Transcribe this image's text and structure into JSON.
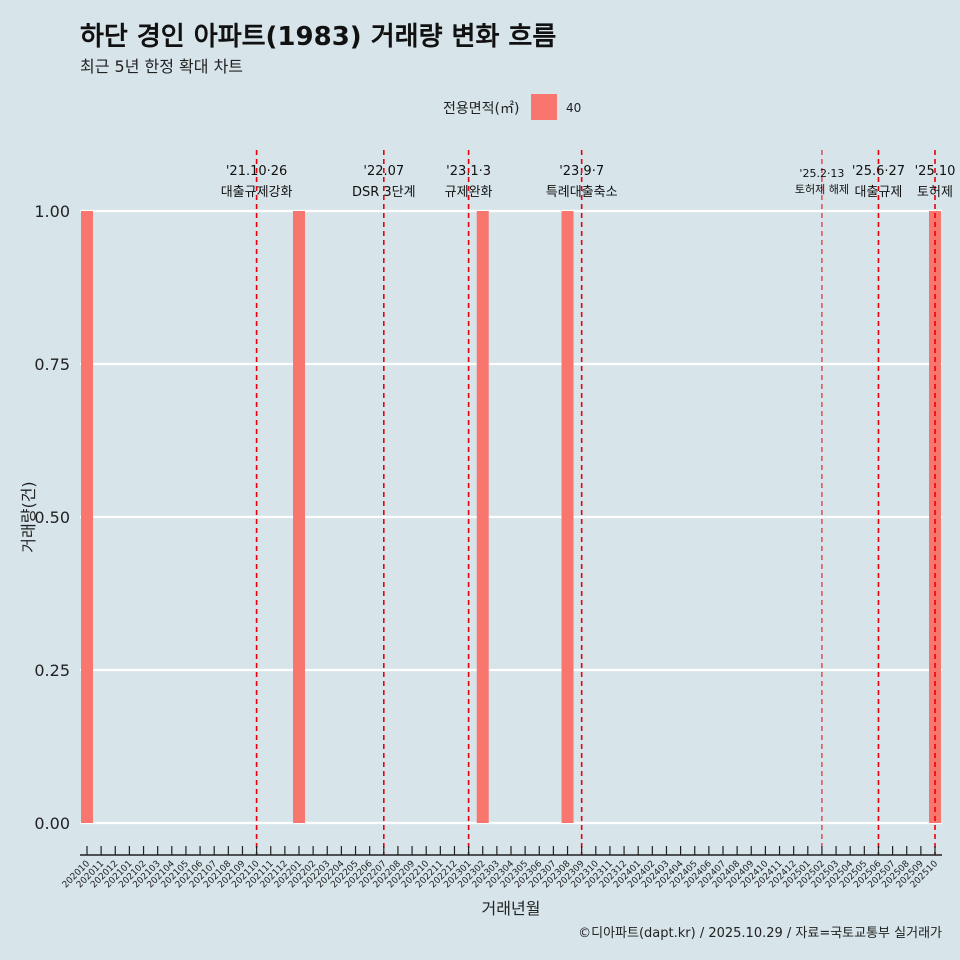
{
  "chart_data": {
    "type": "bar",
    "title": "하단 경인 아파트(1983) 거래량 변화 흐름",
    "subtitle": "최근 5년 한정 확대 차트",
    "xlabel": "거래년월",
    "ylabel": "거래량(건)",
    "caption": "©디아파트(dapt.kr) / 2025.10.29 / 자료=국토교통부 실거래가",
    "legend": {
      "title": "전용면적(㎡)",
      "entries": [
        {
          "label": "40",
          "color": "#f8766d"
        }
      ],
      "position": "top"
    },
    "ylim": [
      0,
      1
    ],
    "yticks": [
      0,
      0.25,
      0.5,
      0.75,
      1.0
    ],
    "ytick_labels": [
      "0.00",
      "0.25",
      "0.50",
      "0.75",
      "1.00"
    ],
    "categories": [
      "202010",
      "202011",
      "202012",
      "202101",
      "202102",
      "202103",
      "202104",
      "202105",
      "202106",
      "202107",
      "202108",
      "202109",
      "202110",
      "202111",
      "202112",
      "202201",
      "202202",
      "202203",
      "202204",
      "202205",
      "202206",
      "202207",
      "202208",
      "202209",
      "202210",
      "202211",
      "202212",
      "202301",
      "202302",
      "202303",
      "202304",
      "202305",
      "202306",
      "202307",
      "202308",
      "202309",
      "202310",
      "202311",
      "202312",
      "202401",
      "202402",
      "202403",
      "202404",
      "202405",
      "202406",
      "202407",
      "202408",
      "202409",
      "202410",
      "202411",
      "202412",
      "202501",
      "202502",
      "202503",
      "202504",
      "202505",
      "202506",
      "202507",
      "202508",
      "202509",
      "202510"
    ],
    "series": [
      {
        "name": "40",
        "color": "#f8766d",
        "points": [
          [
            "202010",
            1
          ],
          [
            "202201",
            1
          ],
          [
            "202302",
            1
          ],
          [
            "202308",
            1
          ],
          [
            "202510",
            1
          ]
        ]
      }
    ],
    "annotations": [
      {
        "at": "202110",
        "date": "'21.10·26",
        "label": "대출규제강화",
        "small": false
      },
      {
        "at": "202207",
        "date": "'22.07",
        "label": "DSR 3단계",
        "small": false
      },
      {
        "at": "202301",
        "date": "'23.1·3",
        "label": "규제완화",
        "small": false
      },
      {
        "at": "202309",
        "date": "'23.9·7",
        "label": "특례대출축소",
        "small": false
      },
      {
        "at": "202502",
        "date": "'25.2·13",
        "label": "토허제 해제",
        "small": true
      },
      {
        "at": "202506",
        "date": "'25.6·27",
        "label": "대출규제",
        "small": false
      },
      {
        "at": "202510",
        "date": "'25.10",
        "label": "토허제",
        "small": false
      }
    ],
    "grid": true
  }
}
